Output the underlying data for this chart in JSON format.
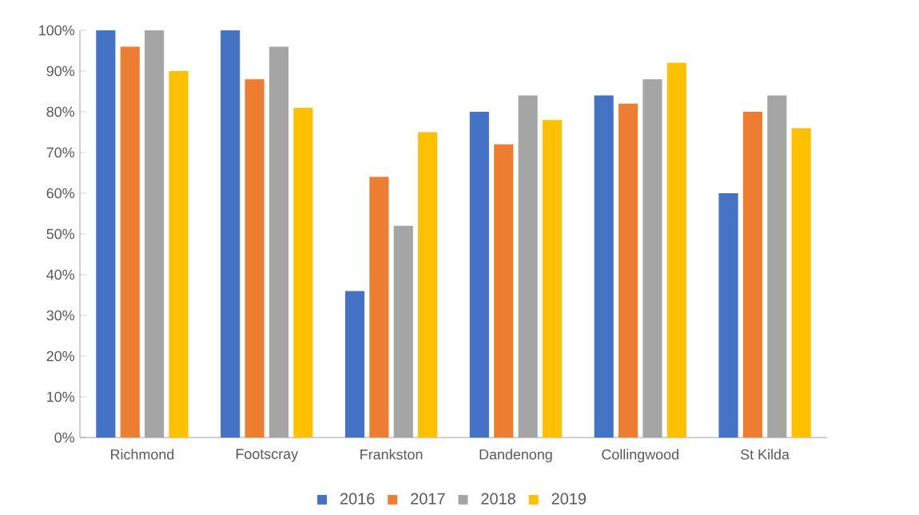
{
  "chart_data": {
    "type": "bar",
    "categories": [
      "Richmond",
      "Footscray",
      "Frankston",
      "Dandenong",
      "Collingwood",
      "St Kilda"
    ],
    "series": [
      {
        "name": "2016",
        "color": "#4472c4",
        "values": [
          100,
          100,
          36,
          80,
          84,
          60
        ]
      },
      {
        "name": "2017",
        "color": "#ed7d31",
        "values": [
          96,
          88,
          64,
          72,
          82,
          80
        ]
      },
      {
        "name": "2018",
        "color": "#a5a5a5",
        "values": [
          100,
          96,
          52,
          84,
          88,
          84
        ]
      },
      {
        "name": "2019",
        "color": "#ffc000",
        "values": [
          90,
          81,
          75,
          78,
          92,
          76
        ]
      }
    ],
    "ylim": [
      0,
      100
    ],
    "yticks": [
      {
        "value": 0,
        "label": "0%"
      },
      {
        "value": 10,
        "label": "10%"
      },
      {
        "value": 20,
        "label": "20%"
      },
      {
        "value": 30,
        "label": "30%"
      },
      {
        "value": 40,
        "label": "40%"
      },
      {
        "value": 50,
        "label": "50%"
      },
      {
        "value": 60,
        "label": "60%"
      },
      {
        "value": 70,
        "label": "70%"
      },
      {
        "value": 80,
        "label": "80%"
      },
      {
        "value": 90,
        "label": "90%"
      },
      {
        "value": 100,
        "label": "100%"
      }
    ],
    "grid": false,
    "legend": "bottom"
  }
}
